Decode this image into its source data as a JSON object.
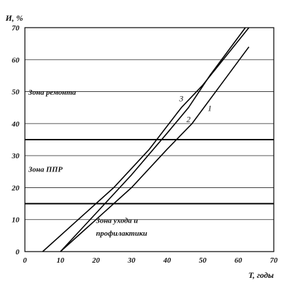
{
  "chart_data": {
    "type": "line",
    "ylabel": "И, %",
    "xlabel": "T, годы",
    "xlim": [
      0,
      70
    ],
    "ylim": [
      0,
      70
    ],
    "xticks": [
      0,
      10,
      20,
      30,
      40,
      50,
      60,
      70
    ],
    "yticks": [
      0,
      10,
      20,
      30,
      40,
      50,
      60,
      70
    ],
    "grid": "horizontal",
    "zone_boundaries": [
      15,
      35
    ],
    "series": [
      {
        "name": "1",
        "x": [
          10,
          20,
          30,
          40,
          47,
          55,
          63
        ],
        "y": [
          0,
          10,
          20,
          32,
          40,
          52,
          64
        ]
      },
      {
        "name": "2",
        "x": [
          10,
          20,
          30,
          40,
          46,
          52,
          62
        ],
        "y": [
          0,
          12,
          24,
          37,
          45,
          55,
          70
        ]
      },
      {
        "name": "3",
        "x": [
          5,
          15,
          25,
          35,
          44,
          50,
          63
        ],
        "y": [
          0,
          10,
          20,
          32,
          45,
          52,
          70
        ]
      }
    ],
    "annotations": [
      {
        "text": "Зона ремонта",
        "x": 1,
        "y": 49
      },
      {
        "text": "Зона ППР",
        "x": 1,
        "y": 25
      },
      {
        "text": "Зона ухода и",
        "x": 20,
        "y": 9
      },
      {
        "text": "профилактики",
        "x": 20,
        "y": 5
      }
    ]
  }
}
